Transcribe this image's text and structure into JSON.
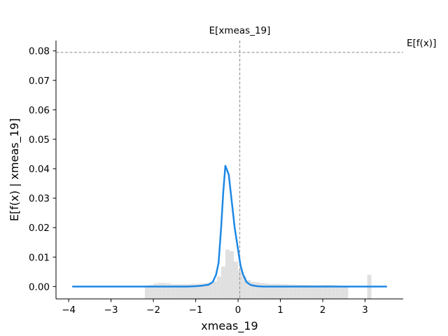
{
  "chart_data": {
    "type": "line",
    "xlabel": "xmeas_19",
    "ylabel": "E[f(x) | xmeas_19]",
    "xlim": [
      -4.3,
      3.9
    ],
    "ylim": [
      -0.0042,
      0.0835
    ],
    "x_ticks": [
      -4,
      -3,
      -2,
      -1,
      0,
      1,
      2,
      3
    ],
    "x_tick_labels": [
      "−4",
      "−3",
      "−2",
      "−1",
      "0",
      "1",
      "2",
      "3"
    ],
    "y_ticks": [
      0.0,
      0.01,
      0.02,
      0.03,
      0.04,
      0.05,
      0.06,
      0.07,
      0.08
    ],
    "y_tick_labels": [
      "0.00",
      "0.01",
      "0.02",
      "0.03",
      "0.04",
      "0.05",
      "0.06",
      "0.07",
      "0.08"
    ],
    "grid": false,
    "reference_lines": {
      "expected_value": {
        "label": "E[f(x)]",
        "y": 0.0795
      },
      "feature_mean": {
        "label": "E[xmeas_19]",
        "x": 0.04
      }
    },
    "series": [
      {
        "color": "#1e88e5",
        "points": [
          [
            -3.9,
            0.0
          ],
          [
            -3.0,
            0.0
          ],
          [
            -2.0,
            0.0
          ],
          [
            -1.2,
            0.0
          ],
          [
            -1.0,
            0.0001
          ],
          [
            -0.85,
            0.0003
          ],
          [
            -0.7,
            0.0006
          ],
          [
            -0.6,
            0.0015
          ],
          [
            -0.52,
            0.004
          ],
          [
            -0.46,
            0.008
          ],
          [
            -0.4,
            0.02
          ],
          [
            -0.35,
            0.032
          ],
          [
            -0.3,
            0.041
          ],
          [
            -0.22,
            0.038
          ],
          [
            -0.15,
            0.029
          ],
          [
            -0.08,
            0.02
          ],
          [
            0.0,
            0.0125
          ],
          [
            0.06,
            0.007
          ],
          [
            0.12,
            0.004
          ],
          [
            0.2,
            0.0015
          ],
          [
            0.3,
            0.0005
          ],
          [
            0.45,
            0.0001
          ],
          [
            0.6,
            0.0
          ],
          [
            1.0,
            0.0
          ],
          [
            2.0,
            0.0
          ],
          [
            3.0,
            0.0
          ],
          [
            3.5,
            0.0
          ]
        ]
      }
    ],
    "histogram": {
      "color": "#e0e0e0",
      "bin_width": 0.1,
      "bin_starts": [
        -2.2,
        -2.1,
        -2.0,
        -1.9,
        -1.8,
        -1.7,
        -1.6,
        -1.5,
        -1.4,
        -1.3,
        -1.2,
        -1.1,
        -1.0,
        -0.9,
        -0.8,
        -0.7,
        -0.6,
        -0.5,
        -0.4,
        -0.3,
        -0.2,
        -0.1,
        0.0,
        0.1,
        0.2,
        0.3,
        0.4,
        0.5,
        0.6,
        0.7,
        0.8,
        0.9,
        1.0,
        1.1,
        1.2,
        1.3,
        1.4,
        1.5,
        1.6,
        1.7,
        1.8,
        1.9,
        2.0,
        2.1,
        2.2,
        2.3,
        2.4,
        2.5,
        3.05
      ],
      "values": [
        0.0004,
        0.0006,
        0.001,
        0.0012,
        0.0012,
        0.0011,
        0.0008,
        0.0008,
        0.0008,
        0.0008,
        0.0008,
        0.0009,
        0.0009,
        0.001,
        0.0012,
        0.0014,
        0.0018,
        0.0034,
        0.0068,
        0.0125,
        0.012,
        0.0085,
        0.0055,
        0.0035,
        0.0022,
        0.0016,
        0.0014,
        0.0012,
        0.0011,
        0.0009,
        0.0009,
        0.0009,
        0.0008,
        0.0008,
        0.0007,
        0.0007,
        0.0006,
        0.0006,
        0.0006,
        0.0005,
        0.0005,
        0.0005,
        0.0006,
        0.0006,
        0.0005,
        0.0004,
        0.0003,
        0.0003,
        0.004
      ]
    }
  }
}
